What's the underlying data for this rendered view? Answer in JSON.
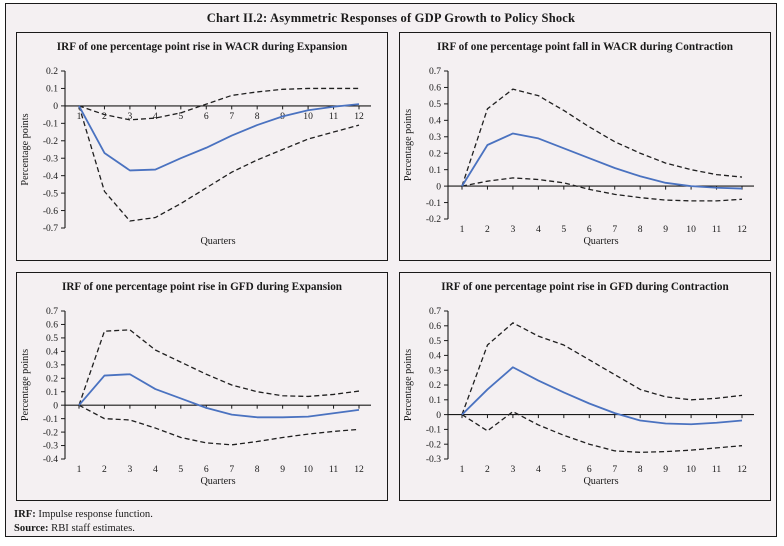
{
  "title": "Chart II.2: Asymmetric Responses of GDP Growth to Policy Shock",
  "footer": {
    "note_label": "IRF:",
    "note_text": " Impulse response function.",
    "source_label": "Source:",
    "source_text": " RBI staff estimates."
  },
  "colors": {
    "background": "#f4f0f2",
    "frame": "#1a1a1a",
    "axis": "#1a1a1a",
    "irf_line": "#4a72c0",
    "band_line": "#1f1f1f"
  },
  "chart_data": [
    {
      "type": "line",
      "title": "IRF of one percentage point rise in WACR during Expansion",
      "xlabel": "Quarters",
      "ylabel": "Percentage points",
      "x": [
        1,
        2,
        3,
        4,
        5,
        6,
        7,
        8,
        9,
        10,
        11,
        12
      ],
      "ylim": [
        -0.7,
        0.2
      ],
      "yticks": [
        0.2,
        0.1,
        0,
        -0.1,
        -0.2,
        -0.3,
        -0.4,
        -0.5,
        -0.6,
        -0.7
      ],
      "x_tick_labels_position": "zero_line",
      "legend": "none",
      "series": [
        {
          "name": "IRF",
          "line_style": "solid",
          "color_key": "irf_line",
          "values": [
            0,
            -0.27,
            -0.37,
            -0.365,
            -0.3,
            -0.24,
            -0.17,
            -0.11,
            -0.06,
            -0.025,
            -0.005,
            0.01
          ]
        },
        {
          "name": "Upper confidence band",
          "line_style": "dashed",
          "color_key": "band_line",
          "values": [
            0,
            -0.05,
            -0.08,
            -0.07,
            -0.04,
            0.01,
            0.06,
            0.08,
            0.095,
            0.1,
            0.1,
            0.1
          ]
        },
        {
          "name": "Lower confidence band",
          "line_style": "dashed",
          "color_key": "band_line",
          "values": [
            0,
            -0.49,
            -0.66,
            -0.64,
            -0.56,
            -0.47,
            -0.38,
            -0.31,
            -0.25,
            -0.19,
            -0.15,
            -0.11
          ]
        }
      ]
    },
    {
      "type": "line",
      "title": "IRF of one percentage point fall in WACR during Contraction",
      "xlabel": "Quarters",
      "ylabel": "Percentage points",
      "x": [
        1,
        2,
        3,
        4,
        5,
        6,
        7,
        8,
        9,
        10,
        11,
        12
      ],
      "ylim": [
        -0.2,
        0.7
      ],
      "yticks": [
        0.7,
        0.6,
        0.5,
        0.4,
        0.3,
        0.2,
        0.1,
        0,
        -0.1,
        -0.2
      ],
      "x_tick_labels_position": "plot_bottom",
      "legend": "none",
      "series": [
        {
          "name": "IRF",
          "line_style": "solid",
          "color_key": "irf_line",
          "values": [
            0,
            0.25,
            0.32,
            0.29,
            0.23,
            0.17,
            0.11,
            0.06,
            0.02,
            0.0,
            -0.01,
            -0.015
          ]
        },
        {
          "name": "Upper confidence band",
          "line_style": "dashed",
          "color_key": "band_line",
          "values": [
            0,
            0.47,
            0.59,
            0.55,
            0.46,
            0.36,
            0.27,
            0.2,
            0.14,
            0.1,
            0.07,
            0.055
          ]
        },
        {
          "name": "Lower confidence band",
          "line_style": "dashed",
          "color_key": "band_line",
          "values": [
            0,
            0.03,
            0.05,
            0.04,
            0.02,
            -0.02,
            -0.05,
            -0.07,
            -0.085,
            -0.09,
            -0.09,
            -0.08
          ]
        }
      ]
    },
    {
      "type": "line",
      "title": "IRF of one percentage point rise in GFD during Expansion",
      "xlabel": "Quarters",
      "ylabel": "Percentage points",
      "x": [
        1,
        2,
        3,
        4,
        5,
        6,
        7,
        8,
        9,
        10,
        11,
        12
      ],
      "ylim": [
        -0.4,
        0.7
      ],
      "yticks": [
        0.7,
        0.6,
        0.5,
        0.4,
        0.3,
        0.2,
        0.1,
        0,
        -0.1,
        -0.2,
        -0.3,
        -0.4
      ],
      "x_tick_labels_position": "plot_bottom",
      "legend": "none",
      "series": [
        {
          "name": "IRF",
          "line_style": "solid",
          "color_key": "irf_line",
          "values": [
            0,
            0.22,
            0.23,
            0.12,
            0.05,
            -0.02,
            -0.07,
            -0.09,
            -0.09,
            -0.085,
            -0.06,
            -0.035
          ]
        },
        {
          "name": "Upper confidence band",
          "line_style": "dashed",
          "color_key": "band_line",
          "values": [
            0,
            0.55,
            0.56,
            0.41,
            0.32,
            0.23,
            0.15,
            0.1,
            0.07,
            0.065,
            0.08,
            0.105
          ]
        },
        {
          "name": "Lower confidence band",
          "line_style": "dashed",
          "color_key": "band_line",
          "values": [
            0,
            -0.1,
            -0.11,
            -0.17,
            -0.24,
            -0.28,
            -0.295,
            -0.27,
            -0.24,
            -0.215,
            -0.195,
            -0.18
          ]
        }
      ]
    },
    {
      "type": "line",
      "title": "IRF of one percentage point rise in GFD during Contraction",
      "xlabel": "Quarters",
      "ylabel": "Percentage points",
      "x": [
        1,
        2,
        3,
        4,
        5,
        6,
        7,
        8,
        9,
        10,
        11,
        12
      ],
      "ylim": [
        -0.3,
        0.7
      ],
      "yticks": [
        0.7,
        0.6,
        0.5,
        0.4,
        0.3,
        0.2,
        0.1,
        0,
        -0.1,
        -0.2,
        -0.3
      ],
      "x_tick_labels_position": "plot_bottom",
      "legend": "none",
      "series": [
        {
          "name": "IRF",
          "line_style": "solid",
          "color_key": "irf_line",
          "values": [
            0,
            0.17,
            0.32,
            0.23,
            0.15,
            0.075,
            0.01,
            -0.04,
            -0.06,
            -0.065,
            -0.055,
            -0.04
          ]
        },
        {
          "name": "Upper confidence band",
          "line_style": "dashed",
          "color_key": "band_line",
          "values": [
            0,
            0.47,
            0.62,
            0.53,
            0.47,
            0.37,
            0.27,
            0.17,
            0.12,
            0.1,
            0.11,
            0.13
          ]
        },
        {
          "name": "Lower confidence band",
          "line_style": "dashed",
          "color_key": "band_line",
          "values": [
            0,
            -0.11,
            0.02,
            -0.07,
            -0.14,
            -0.2,
            -0.245,
            -0.255,
            -0.25,
            -0.24,
            -0.225,
            -0.21
          ]
        }
      ]
    }
  ]
}
